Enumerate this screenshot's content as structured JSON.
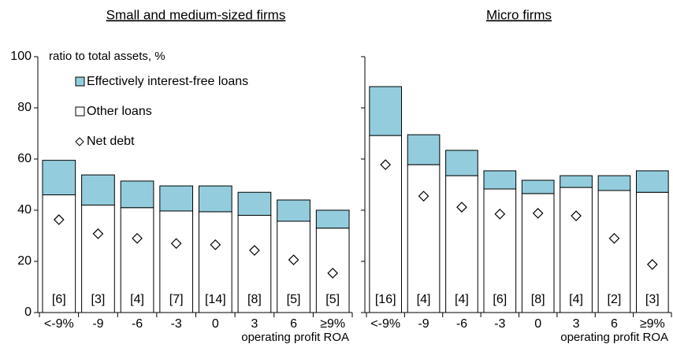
{
  "chart_data": [
    {
      "type": "bar",
      "title": "Small and medium-sized firms",
      "y_label": "ratio to total assets, %",
      "x_label": "operating profit ROA",
      "categories": [
        "<-9%",
        "-9",
        "-6",
        "-3",
        "0",
        "3",
        "6",
        "≥9%"
      ],
      "count_labels": [
        "[6]",
        "[3]",
        "[4]",
        "[7]",
        "[14]",
        "[8]",
        "[5]",
        "[5]"
      ],
      "series": [
        {
          "name": "Effectively interest-free loans",
          "kind": "bar",
          "color": "#93cddd",
          "values": [
            13.5,
            11.8,
            10.4,
            9.8,
            10.1,
            9,
            8.3,
            7
          ]
        },
        {
          "name": "Other loans",
          "kind": "bar",
          "color": "#ffffff",
          "values": [
            46,
            42,
            41,
            39.7,
            39.4,
            38,
            35.7,
            33
          ]
        },
        {
          "name": "Net debt",
          "kind": "marker",
          "color": "#ffffff",
          "values": [
            36.3,
            30.8,
            29,
            27,
            26.5,
            24.3,
            20.6,
            15.4
          ]
        }
      ],
      "ylim": [
        0,
        100
      ],
      "yticks": [
        0,
        20,
        40,
        60,
        80,
        100
      ],
      "show_ytick_labels": true,
      "legend": true
    },
    {
      "type": "bar",
      "title": "Micro firms",
      "x_label": "operating profit ROA",
      "categories": [
        "<-9%",
        "-9",
        "-6",
        "-3",
        "0",
        "3",
        "6",
        "≥9%"
      ],
      "count_labels": [
        "[16]",
        "[4]",
        "[4]",
        "[6]",
        "[8]",
        "[4]",
        "[2]",
        "[3]"
      ],
      "series": [
        {
          "name": "Effectively interest-free loans",
          "kind": "bar",
          "color": "#93cddd",
          "values": [
            19.1,
            11.7,
            9.9,
            7.1,
            5.2,
            4.6,
            5.8,
            8.4
          ]
        },
        {
          "name": "Other loans",
          "kind": "bar",
          "color": "#ffffff",
          "values": [
            69.2,
            57.8,
            53.5,
            48.3,
            46.5,
            48.9,
            47.7,
            47
          ]
        },
        {
          "name": "Net debt",
          "kind": "marker",
          "color": "#ffffff",
          "values": [
            57.8,
            45.5,
            41.2,
            38.5,
            38.8,
            37.8,
            29,
            18.8
          ]
        }
      ],
      "ylim": [
        0,
        100
      ],
      "yticks": [
        0,
        20,
        40,
        60,
        80,
        100
      ],
      "show_ytick_labels": false,
      "legend": false
    }
  ]
}
